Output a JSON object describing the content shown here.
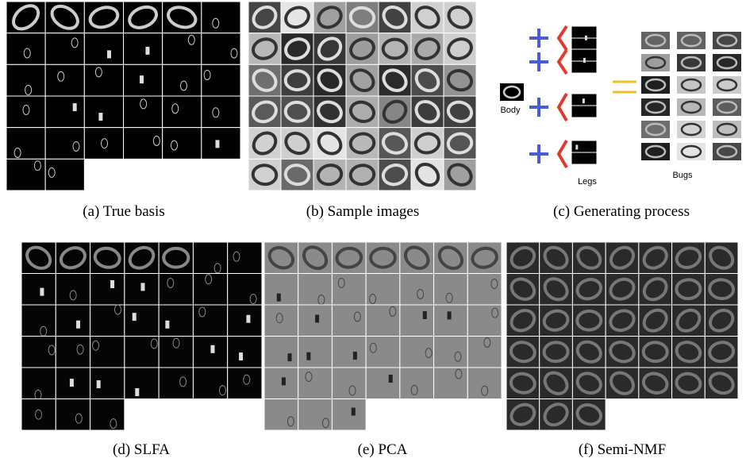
{
  "panels": [
    {
      "caption": "(a) True basis"
    },
    {
      "caption": "(b) Sample images"
    },
    {
      "caption": "(c) Generating process",
      "labels": {
        "body": "Body",
        "legs": "Legs",
        "bugs": "Bugs"
      }
    },
    {
      "caption": "(d) SLFA"
    },
    {
      "caption": "(e) PCA"
    },
    {
      "caption": "(f) Semi-NMF"
    }
  ]
}
